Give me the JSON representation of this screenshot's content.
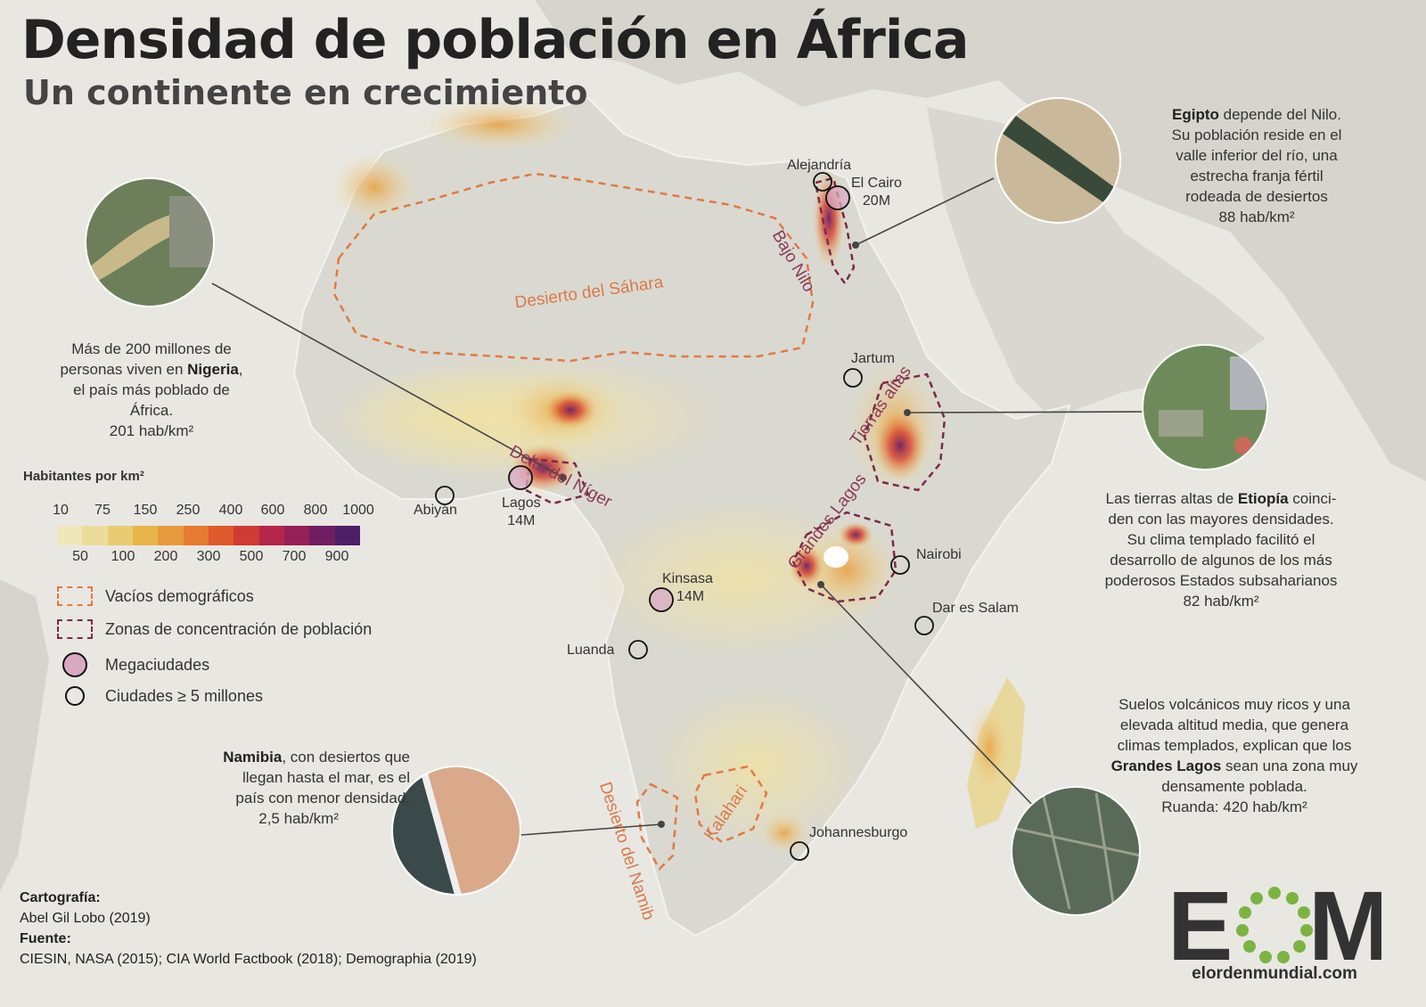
{
  "header": {
    "title": "Densidad de población en África",
    "subtitle": "Un continente en crecimiento"
  },
  "colors": {
    "ocean": "#e9e7e2",
    "land": "#dcdbd3",
    "desert_outline": "#e07a45",
    "concentration_outline": "#7a2a4a",
    "megacity_fill": "#d9a9c4",
    "density_low": "#f1e5b6",
    "density_high": "#5a1f6a"
  },
  "legend": {
    "title": "Habitantes por km²",
    "top_ticks": [
      "10",
      "75",
      "150",
      "250",
      "400",
      "600",
      "800",
      "1000"
    ],
    "bottom_ticks": [
      "50",
      "100",
      "200",
      "300",
      "500",
      "700",
      "900"
    ],
    "ramp": [
      "#efe6ba",
      "#ecdc9c",
      "#e9cc72",
      "#e8b54a",
      "#e89a3c",
      "#e57b31",
      "#df5a2c",
      "#cf3a35",
      "#b5274a",
      "#942057",
      "#6f1e63",
      "#4e1f66"
    ],
    "items": [
      {
        "label": "Vacíos demográficos",
        "symbol": "dashed-orange-box"
      },
      {
        "label": "Zonas de concentración de población",
        "symbol": "dashed-maroon-box"
      },
      {
        "label": "Megaciudades",
        "symbol": "pink-circle"
      },
      {
        "label": "Ciudades ≥ 5 millones",
        "symbol": "black-circle"
      }
    ]
  },
  "regions": {
    "sahara": "Desierto del Sáhara",
    "bajo_nilo": "Bajo Nilo",
    "delta_niger": "Delta del Níger",
    "tierras_altas": "Tierras altas",
    "grandes_lagos": "Grandes Lagos",
    "kalahari": "Kalahari",
    "namib": "Desierto del Namib"
  },
  "cities": {
    "alejandria": "Alejandría",
    "el_cairo": "El Cairo",
    "el_cairo_pop": "20M",
    "jartum": "Jartum",
    "lagos": "Lagos",
    "lagos_pop": "14M",
    "abiyan": "Abiyán",
    "kinsasa": "Kinsasa",
    "kinsasa_pop": "14M",
    "luanda": "Luanda",
    "nairobi": "Nairobi",
    "dar_es_salam": "Dar es Salam",
    "johannesburgo": "Johannesburgo"
  },
  "notes": {
    "egipto": {
      "bold": "Egipto",
      "l1": " depende del Nilo.",
      "l2": "Su población reside en el",
      "l3": "valle inferior del río, una",
      "l4": "estrecha franja fértil",
      "l5": "rodeada de desiertos",
      "l6": "88 hab/km²"
    },
    "nigeria": {
      "l1": "Más de 200 millones de",
      "l2_pre": "personas viven en ",
      "bold": "Nigeria",
      "l2_post": ",",
      "l3": "el país más poblado de",
      "l4": "África.",
      "l5": "201 hab/km²"
    },
    "etiopia": {
      "l1_pre": "Las tierras altas de ",
      "bold": "Etiopía",
      "l1_post": " coinci-",
      "l2": "den con las mayores densidades.",
      "l3": "Su clima templado facilitó el",
      "l4": "desarrollo de algunos de los más",
      "l5": "poderosos Estados subsaharianos",
      "l6": "82 hab/km²"
    },
    "grandes_lagos": {
      "l1": "Suelos volcánicos muy ricos y una",
      "l2": "elevada altitud media, que genera",
      "l3": "climas templados, explican que los",
      "bold": "Grandes Lagos",
      "l4_post": " sean una zona muy",
      "l5": "densamente poblada.",
      "l6": "Ruanda: 420 hab/km²"
    },
    "namibia": {
      "bold": "Namibia",
      "l1_post": ", con desiertos que",
      "l2": "llegan hasta el mar, es el",
      "l3": "país con menor densidad.",
      "l4": "2,5 hab/km²"
    }
  },
  "credits": {
    "cartografia_label": "Cartografía:",
    "cartografia": "Abel Gil Lobo (2019)",
    "fuente_label": "Fuente:",
    "fuente": "CIESIN, NASA (2015); CIA World Factbook (2018); Demographia (2019)"
  },
  "logo": {
    "letters_e": "E",
    "letters_m": "M",
    "url": "elordenmundial.com"
  }
}
